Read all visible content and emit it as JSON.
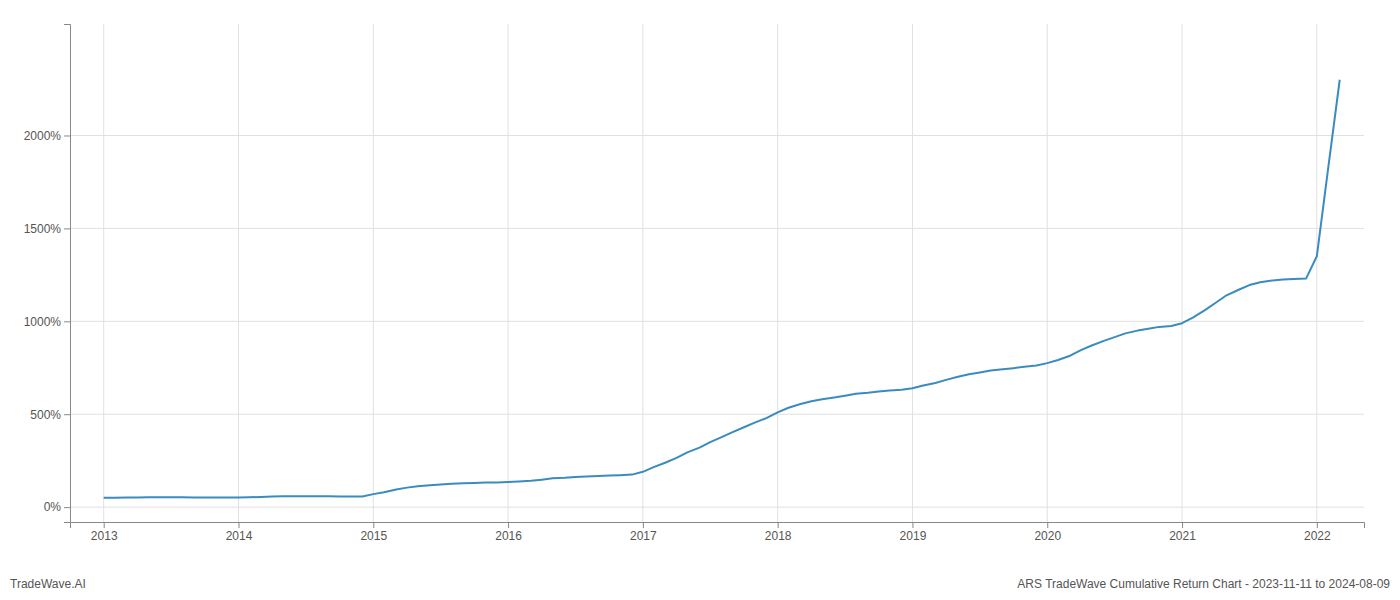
{
  "chart_data": {
    "type": "line",
    "title": "ARS TradeWave Cumulative Return Chart - 2023-11-11 to 2024-08-09",
    "annotations": [
      "TradeWave.AI"
    ],
    "color": "#3a8bbf",
    "grid": true,
    "x": [
      2013.0,
      2013.08,
      2013.17,
      2013.25,
      2013.33,
      2013.42,
      2013.5,
      2013.58,
      2013.67,
      2013.75,
      2013.83,
      2013.92,
      2014.0,
      2014.08,
      2014.17,
      2014.25,
      2014.33,
      2014.42,
      2014.5,
      2014.58,
      2014.67,
      2014.75,
      2014.83,
      2014.92,
      2015.0,
      2015.08,
      2015.17,
      2015.25,
      2015.33,
      2015.42,
      2015.5,
      2015.58,
      2015.67,
      2015.75,
      2015.83,
      2015.92,
      2016.0,
      2016.08,
      2016.17,
      2016.25,
      2016.33,
      2016.42,
      2016.5,
      2016.58,
      2016.67,
      2016.75,
      2016.83,
      2016.92,
      2017.0,
      2017.08,
      2017.17,
      2017.25,
      2017.33,
      2017.42,
      2017.5,
      2017.58,
      2017.67,
      2017.75,
      2017.83,
      2017.92,
      2018.0,
      2018.08,
      2018.17,
      2018.25,
      2018.33,
      2018.42,
      2018.5,
      2018.58,
      2018.67,
      2018.75,
      2018.83,
      2018.92,
      2019.0,
      2019.08,
      2019.17,
      2019.25,
      2019.33,
      2019.42,
      2019.5,
      2019.58,
      2019.67,
      2019.75,
      2019.83,
      2019.92,
      2020.0,
      2020.08,
      2020.17,
      2020.25,
      2020.33,
      2020.42,
      2020.5,
      2020.58,
      2020.67,
      2020.75,
      2020.83,
      2020.92,
      2021.0,
      2021.08,
      2021.17,
      2021.25,
      2021.33,
      2021.42,
      2021.5,
      2021.58,
      2021.67,
      2021.75,
      2021.83,
      2021.92,
      2022.0,
      2022.08,
      2022.17
    ],
    "values": [
      50,
      51,
      52,
      52,
      53,
      53,
      53,
      53,
      52,
      52,
      52,
      52,
      52,
      53,
      55,
      57,
      58,
      59,
      59,
      59,
      58,
      57,
      57,
      57,
      70,
      80,
      95,
      105,
      112,
      118,
      122,
      126,
      128,
      130,
      132,
      133,
      135,
      138,
      142,
      148,
      155,
      158,
      162,
      165,
      168,
      170,
      172,
      175,
      190,
      215,
      240,
      265,
      295,
      320,
      350,
      375,
      405,
      430,
      455,
      480,
      510,
      535,
      555,
      570,
      580,
      590,
      600,
      610,
      615,
      622,
      628,
      632,
      640,
      655,
      668,
      685,
      700,
      715,
      725,
      735,
      742,
      748,
      755,
      762,
      775,
      792,
      815,
      845,
      870,
      895,
      915,
      935,
      950,
      960,
      970,
      975,
      990,
      1020,
      1060,
      1100,
      1140,
      1170,
      1195,
      1210,
      1220,
      1225,
      1228,
      1230,
      1350,
      1800,
      2300
    ],
    "xlim": [
      2012.75,
      2022.35
    ],
    "xticks": [
      2013,
      2014,
      2015,
      2016,
      2017,
      2018,
      2019,
      2020,
      2021,
      2022
    ],
    "ylim": [
      -80,
      2600
    ],
    "yticks": [
      {
        "value": 0,
        "label": "0%"
      },
      {
        "value": 500,
        "label": "500%"
      },
      {
        "value": 1000,
        "label": "1000%"
      },
      {
        "value": 1500,
        "label": "1500%"
      },
      {
        "value": 2000,
        "label": "2000%"
      }
    ]
  }
}
